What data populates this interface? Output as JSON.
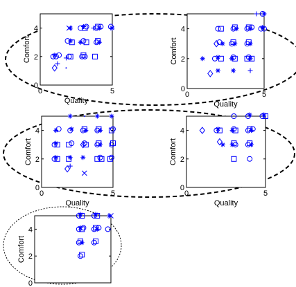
{
  "chart_data": [
    {
      "type": "scatter",
      "xlabel": "Quality",
      "ylabel": "Comfort",
      "xlim": [
        0,
        5
      ],
      "ylim": [
        0,
        5
      ],
      "xticks": [
        "0",
        "5"
      ],
      "yticks": [
        "0",
        "2",
        "4"
      ],
      "grid": false,
      "marker_color": "#0000ff",
      "points": [
        {
          "x": 0.9,
          "y": 2.0,
          "m": "o"
        },
        {
          "x": 1.0,
          "y": 2.1,
          "m": "*"
        },
        {
          "x": 1.1,
          "y": 2.0,
          "m": "o"
        },
        {
          "x": 1.3,
          "y": 2.1,
          "m": "o"
        },
        {
          "x": 1.0,
          "y": 1.2,
          "m": "d"
        },
        {
          "x": 1.2,
          "y": 1.5,
          "m": "+"
        },
        {
          "x": 1.8,
          "y": 1.2,
          "m": "."
        },
        {
          "x": 2.0,
          "y": 2.0,
          "m": "o"
        },
        {
          "x": 2.1,
          "y": 2.0,
          "m": "s"
        },
        {
          "x": 1.8,
          "y": 1.9,
          "m": "+"
        },
        {
          "x": 1.9,
          "y": 3.1,
          "m": "o"
        },
        {
          "x": 2.1,
          "y": 3.1,
          "m": "*"
        },
        {
          "x": 2.2,
          "y": 3.0,
          "m": "s"
        },
        {
          "x": 2.0,
          "y": 4.0,
          "m": "x"
        },
        {
          "x": 2.1,
          "y": 4.0,
          "m": "*"
        },
        {
          "x": 2.9,
          "y": 2.0,
          "m": "o"
        },
        {
          "x": 3.0,
          "y": 2.1,
          "m": "s"
        },
        {
          "x": 3.1,
          "y": 2.0,
          "m": "o"
        },
        {
          "x": 2.8,
          "y": 3.0,
          "m": "*"
        },
        {
          "x": 3.0,
          "y": 3.1,
          "m": "o"
        },
        {
          "x": 3.2,
          "y": 3.0,
          "m": "s"
        },
        {
          "x": 2.8,
          "y": 4.0,
          "m": "o"
        },
        {
          "x": 3.0,
          "y": 4.1,
          "m": "*"
        },
        {
          "x": 3.1,
          "y": 4.0,
          "m": "s"
        },
        {
          "x": 3.2,
          "y": 4.1,
          "m": "o"
        },
        {
          "x": 3.9,
          "y": 3.0,
          "m": "o"
        },
        {
          "x": 4.0,
          "y": 3.1,
          "m": "s"
        },
        {
          "x": 4.1,
          "y": 3.0,
          "m": "*"
        },
        {
          "x": 3.8,
          "y": 2.0,
          "m": "s"
        },
        {
          "x": 3.9,
          "y": 4.0,
          "m": "o"
        },
        {
          "x": 4.0,
          "y": 4.1,
          "m": "s"
        },
        {
          "x": 4.1,
          "y": 4.0,
          "m": "*"
        },
        {
          "x": 4.2,
          "y": 4.1,
          "m": "o"
        },
        {
          "x": 3.7,
          "y": 4.0,
          "m": "+"
        },
        {
          "x": 4.9,
          "y": 4.1,
          "m": "o"
        },
        {
          "x": 5.0,
          "y": 4.0,
          "m": "*"
        },
        {
          "x": 4.9,
          "y": 4.0,
          "m": "+"
        }
      ]
    },
    {
      "type": "scatter",
      "xlabel": "Quality",
      "ylabel": "Comfort",
      "xlim": [
        0,
        5
      ],
      "ylim": [
        0,
        5
      ],
      "xticks": [
        "0",
        "5"
      ],
      "yticks": [
        "0",
        "2",
        "4"
      ],
      "grid": false,
      "marker_color": "#0000ff",
      "points": [
        {
          "x": 1.0,
          "y": 2.0,
          "m": "*"
        },
        {
          "x": 1.5,
          "y": 1.0,
          "m": "d"
        },
        {
          "x": 2.0,
          "y": 1.2,
          "m": "*"
        },
        {
          "x": 1.8,
          "y": 2.0,
          "m": "o"
        },
        {
          "x": 2.0,
          "y": 2.1,
          "m": "*"
        },
        {
          "x": 2.2,
          "y": 2.0,
          "m": "s"
        },
        {
          "x": 1.9,
          "y": 3.0,
          "m": "d"
        },
        {
          "x": 2.1,
          "y": 3.1,
          "m": "o"
        },
        {
          "x": 2.3,
          "y": 3.0,
          "m": "*"
        },
        {
          "x": 2.0,
          "y": 4.0,
          "m": "o"
        },
        {
          "x": 2.2,
          "y": 4.0,
          "m": "s"
        },
        {
          "x": 2.9,
          "y": 2.0,
          "m": "*"
        },
        {
          "x": 3.0,
          "y": 2.1,
          "m": "o"
        },
        {
          "x": 3.1,
          "y": 2.0,
          "m": "s"
        },
        {
          "x": 2.9,
          "y": 3.0,
          "m": "o"
        },
        {
          "x": 3.0,
          "y": 3.1,
          "m": "s"
        },
        {
          "x": 3.1,
          "y": 3.0,
          "m": "*"
        },
        {
          "x": 3.0,
          "y": 4.0,
          "m": "o"
        },
        {
          "x": 3.1,
          "y": 4.1,
          "m": "s"
        },
        {
          "x": 3.2,
          "y": 4.0,
          "m": "*"
        },
        {
          "x": 3.0,
          "y": 1.2,
          "m": "*"
        },
        {
          "x": 3.9,
          "y": 3.0,
          "m": "o"
        },
        {
          "x": 4.0,
          "y": 3.1,
          "m": "s"
        },
        {
          "x": 4.1,
          "y": 3.0,
          "m": "*"
        },
        {
          "x": 3.9,
          "y": 4.0,
          "m": "o"
        },
        {
          "x": 4.0,
          "y": 4.1,
          "m": "s"
        },
        {
          "x": 4.1,
          "y": 4.0,
          "m": "*"
        },
        {
          "x": 4.2,
          "y": 4.1,
          "m": "o"
        },
        {
          "x": 3.9,
          "y": 2.0,
          "m": "s"
        },
        {
          "x": 4.0,
          "y": 2.1,
          "m": "o"
        },
        {
          "x": 4.1,
          "y": 2.0,
          "m": "*"
        },
        {
          "x": 4.2,
          "y": 2.0,
          "m": "s"
        },
        {
          "x": 4.1,
          "y": 1.2,
          "m": "+"
        },
        {
          "x": 4.8,
          "y": 4.0,
          "m": "o"
        },
        {
          "x": 4.9,
          "y": 4.1,
          "m": "*"
        },
        {
          "x": 5.0,
          "y": 4.0,
          "m": "o"
        },
        {
          "x": 5.0,
          "y": 5.0,
          "m": "*"
        },
        {
          "x": 4.5,
          "y": 5.0,
          "m": "+"
        },
        {
          "x": 4.9,
          "y": 5.0,
          "m": "o"
        }
      ]
    },
    {
      "type": "scatter",
      "xlabel": "Quality",
      "ylabel": "Comfort",
      "xlim": [
        0,
        5
      ],
      "ylim": [
        0,
        5
      ],
      "xticks": [
        "0",
        "5"
      ],
      "yticks": [
        "0",
        "2",
        "4"
      ],
      "grid": false,
      "marker_color": "#0000ff",
      "points": [
        {
          "x": 1.0,
          "y": 4.0,
          "m": "*"
        },
        {
          "x": 0.9,
          "y": 3.0,
          "m": "o"
        },
        {
          "x": 1.0,
          "y": 3.1,
          "m": "*"
        },
        {
          "x": 1.1,
          "y": 3.0,
          "m": "s"
        },
        {
          "x": 0.9,
          "y": 2.0,
          "m": "o"
        },
        {
          "x": 1.0,
          "y": 2.1,
          "m": "*"
        },
        {
          "x": 1.1,
          "y": 2.0,
          "m": "s"
        },
        {
          "x": 1.2,
          "y": 4.1,
          "m": "o"
        },
        {
          "x": 2.0,
          "y": 5.0,
          "m": "*"
        },
        {
          "x": 2.0,
          "y": 4.0,
          "m": "o"
        },
        {
          "x": 2.1,
          "y": 4.1,
          "m": "*"
        },
        {
          "x": 1.9,
          "y": 3.0,
          "m": "s"
        },
        {
          "x": 2.1,
          "y": 3.1,
          "m": "o"
        },
        {
          "x": 2.0,
          "y": 2.1,
          "m": "*"
        },
        {
          "x": 1.9,
          "y": 2.0,
          "m": "s"
        },
        {
          "x": 1.8,
          "y": 1.3,
          "m": "d"
        },
        {
          "x": 2.0,
          "y": 1.5,
          "m": "+"
        },
        {
          "x": 3.0,
          "y": 5.0,
          "m": "."
        },
        {
          "x": 2.9,
          "y": 4.0,
          "m": "o"
        },
        {
          "x": 3.0,
          "y": 4.1,
          "m": "s"
        },
        {
          "x": 3.1,
          "y": 4.0,
          "m": "*"
        },
        {
          "x": 2.9,
          "y": 3.0,
          "m": "d"
        },
        {
          "x": 3.0,
          "y": 3.1,
          "m": "o"
        },
        {
          "x": 3.1,
          "y": 3.0,
          "m": "s"
        },
        {
          "x": 2.9,
          "y": 2.1,
          "m": "*"
        },
        {
          "x": 3.0,
          "y": 1.0,
          "m": "x"
        },
        {
          "x": 3.9,
          "y": 5.0,
          "m": "*"
        },
        {
          "x": 3.9,
          "y": 4.0,
          "m": "o"
        },
        {
          "x": 4.0,
          "y": 4.1,
          "m": "s"
        },
        {
          "x": 4.1,
          "y": 4.0,
          "m": "*"
        },
        {
          "x": 3.9,
          "y": 3.0,
          "m": "o"
        },
        {
          "x": 4.0,
          "y": 3.1,
          "m": "s"
        },
        {
          "x": 4.1,
          "y": 3.0,
          "m": "*"
        },
        {
          "x": 3.9,
          "y": 2.0,
          "m": "s"
        },
        {
          "x": 4.1,
          "y": 2.1,
          "m": "o"
        },
        {
          "x": 4.2,
          "y": 2.0,
          "m": "s"
        },
        {
          "x": 4.9,
          "y": 5.0,
          "m": "*"
        },
        {
          "x": 4.9,
          "y": 4.0,
          "m": "s"
        },
        {
          "x": 5.0,
          "y": 4.1,
          "m": "o"
        },
        {
          "x": 4.9,
          "y": 3.0,
          "m": "o"
        },
        {
          "x": 5.0,
          "y": 3.1,
          "m": "s"
        },
        {
          "x": 4.8,
          "y": 2.0,
          "m": "s"
        },
        {
          "x": 4.9,
          "y": 2.1,
          "m": "o"
        }
      ]
    },
    {
      "type": "scatter",
      "xlabel": "Quality",
      "ylabel": "Comfort",
      "xlim": [
        0,
        5
      ],
      "ylim": [
        0,
        5
      ],
      "xticks": [
        "0",
        "5"
      ],
      "yticks": [
        "0",
        "2",
        "4"
      ],
      "grid": false,
      "marker_color": "#0000ff",
      "points": [
        {
          "x": 1.0,
          "y": 4.0,
          "m": "d"
        },
        {
          "x": 2.0,
          "y": 4.1,
          "m": "*"
        },
        {
          "x": 2.1,
          "y": 4.0,
          "m": "s"
        },
        {
          "x": 1.9,
          "y": 4.0,
          "m": "o"
        },
        {
          "x": 2.1,
          "y": 3.2,
          "m": "d"
        },
        {
          "x": 2.3,
          "y": 3.0,
          "m": "*"
        },
        {
          "x": 3.0,
          "y": 5.0,
          "m": "o"
        },
        {
          "x": 2.9,
          "y": 4.0,
          "m": "*"
        },
        {
          "x": 3.0,
          "y": 4.1,
          "m": "o"
        },
        {
          "x": 3.1,
          "y": 4.0,
          "m": "s"
        },
        {
          "x": 2.9,
          "y": 3.0,
          "m": "*"
        },
        {
          "x": 3.0,
          "y": 3.1,
          "m": "s"
        },
        {
          "x": 3.1,
          "y": 3.0,
          "m": "o"
        },
        {
          "x": 3.0,
          "y": 2.0,
          "m": "s"
        },
        {
          "x": 3.9,
          "y": 5.0,
          "m": "o"
        },
        {
          "x": 4.0,
          "y": 5.1,
          "m": "*"
        },
        {
          "x": 3.9,
          "y": 4.0,
          "m": "o"
        },
        {
          "x": 4.0,
          "y": 4.1,
          "m": "s"
        },
        {
          "x": 4.1,
          "y": 4.0,
          "m": "*"
        },
        {
          "x": 4.2,
          "y": 4.1,
          "m": "o"
        },
        {
          "x": 3.9,
          "y": 3.0,
          "m": "o"
        },
        {
          "x": 4.0,
          "y": 3.1,
          "m": "s"
        },
        {
          "x": 4.1,
          "y": 3.0,
          "m": "*"
        },
        {
          "x": 4.0,
          "y": 2.0,
          "m": "o"
        },
        {
          "x": 4.8,
          "y": 5.0,
          "m": "o"
        },
        {
          "x": 4.9,
          "y": 5.1,
          "m": "*"
        },
        {
          "x": 5.0,
          "y": 5.0,
          "m": "s"
        }
      ]
    },
    {
      "type": "scatter",
      "xlabel": "",
      "ylabel": "Comfort",
      "xlim": [
        0,
        5
      ],
      "ylim": [
        0,
        5
      ],
      "xticks": [],
      "yticks": [
        "0",
        "2",
        "4"
      ],
      "grid": false,
      "marker_color": "#0000ff",
      "points": [
        {
          "x": 2.9,
          "y": 5.0,
          "m": "o"
        },
        {
          "x": 3.0,
          "y": 5.1,
          "m": "*"
        },
        {
          "x": 3.1,
          "y": 5.0,
          "m": "s"
        },
        {
          "x": 2.9,
          "y": 4.0,
          "m": "o"
        },
        {
          "x": 3.0,
          "y": 4.1,
          "m": "*"
        },
        {
          "x": 3.1,
          "y": 4.0,
          "m": "s"
        },
        {
          "x": 3.2,
          "y": 4.1,
          "m": "o"
        },
        {
          "x": 2.9,
          "y": 3.0,
          "m": "o"
        },
        {
          "x": 3.0,
          "y": 3.1,
          "m": "s"
        },
        {
          "x": 3.1,
          "y": 3.0,
          "m": "*"
        },
        {
          "x": 3.0,
          "y": 2.0,
          "m": "o"
        },
        {
          "x": 3.1,
          "y": 2.1,
          "m": "s"
        },
        {
          "x": 3.9,
          "y": 5.0,
          "m": "o"
        },
        {
          "x": 4.0,
          "y": 5.1,
          "m": "*"
        },
        {
          "x": 4.1,
          "y": 5.0,
          "m": "s"
        },
        {
          "x": 3.9,
          "y": 4.0,
          "m": "o"
        },
        {
          "x": 4.0,
          "y": 4.1,
          "m": "s"
        },
        {
          "x": 4.1,
          "y": 4.0,
          "m": "*"
        },
        {
          "x": 4.2,
          "y": 4.1,
          "m": "o"
        },
        {
          "x": 3.9,
          "y": 3.0,
          "m": "o"
        },
        {
          "x": 4.0,
          "y": 3.1,
          "m": "s"
        },
        {
          "x": 4.9,
          "y": 5.0,
          "m": "*"
        },
        {
          "x": 5.0,
          "y": 5.0,
          "m": "x"
        },
        {
          "x": 4.8,
          "y": 4.0,
          "m": "o"
        }
      ]
    }
  ]
}
